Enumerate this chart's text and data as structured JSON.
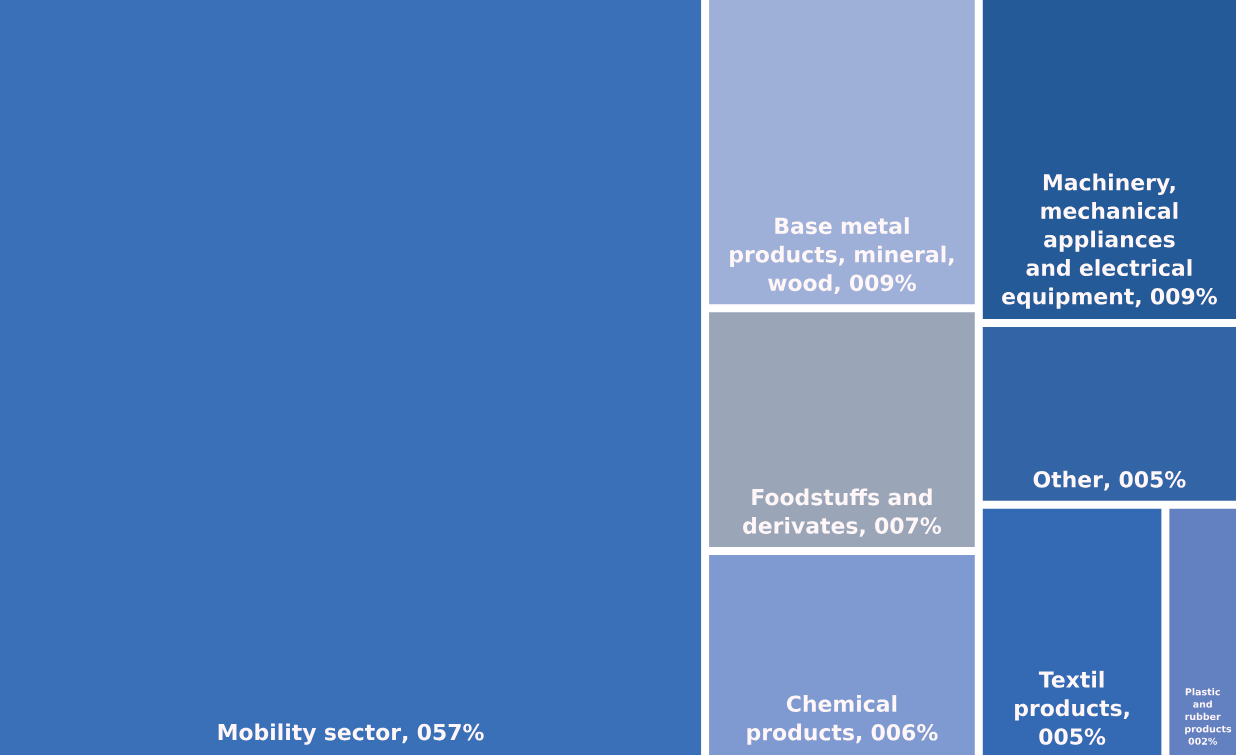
{
  "chart_data": {
    "type": "other",
    "categories": [
      "Mobility sector",
      "Base metal products, mineral, wood",
      "Foodstuffs and derivates",
      "Chemical products",
      "Machinery, mechanical appliances and electrical equipment",
      "Other",
      "Textil products",
      "Plastic and rubber products"
    ],
    "values": [
      57,
      9,
      7,
      6,
      9,
      5,
      5,
      2
    ],
    "value_labels": [
      ", 057%",
      ", 009%",
      ", 007%",
      ", 006%",
      ", 009%",
      ", 005%",
      ", 005%",
      " 002%"
    ],
    "colors": [
      "#3a70b7",
      "#9eb0d8",
      "#9aa6b8",
      "#7f9ad0",
      "#245a97",
      "#3364a6",
      "#336ab3",
      "#6381c0"
    ]
  }
}
